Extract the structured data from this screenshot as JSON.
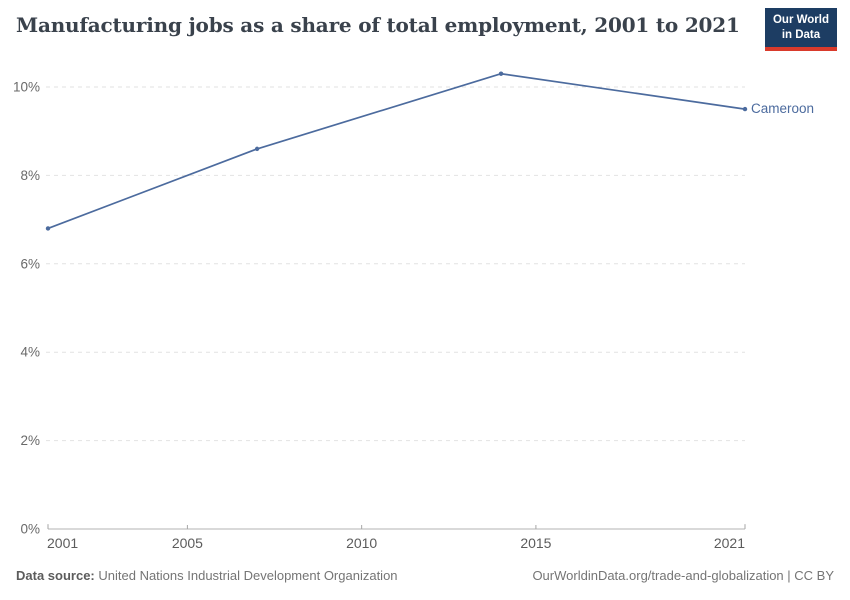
{
  "header": {
    "title": "Manufacturing jobs as a share of total employment, 2001 to 2021",
    "logo": {
      "line1": "Our World",
      "line2": "in Data"
    }
  },
  "chart_data": {
    "type": "line",
    "title": "Manufacturing jobs as a share of total employment, 2001 to 2021",
    "series": [
      {
        "name": "Cameroon",
        "x": [
          2001,
          2007,
          2014,
          2021
        ],
        "values": [
          6.8,
          8.6,
          10.3,
          9.5
        ]
      }
    ],
    "x_ticks": [
      2001,
      2005,
      2010,
      2015,
      2021
    ],
    "y_ticks": [
      0,
      2,
      4,
      6,
      8,
      10
    ],
    "y_suffix": "%",
    "xlim": [
      2001,
      2021
    ],
    "ylim": [
      0,
      10
    ],
    "grid": "horizontal-dashed",
    "legend_position": "end-of-line",
    "end_label": "Cameroon",
    "colors": {
      "line": "#4C6B9E",
      "grid": "#e2e2e2",
      "axis": "#b3b3b3",
      "tick": "#a6a6a6",
      "y_label": "#696969",
      "x_label": "#5c5c5c"
    }
  },
  "footer": {
    "source_label": "Data source:",
    "source_text": "United Nations Industrial Development Organization",
    "credit": "OurWorldinData.org/trade-and-globalization | CC BY"
  }
}
